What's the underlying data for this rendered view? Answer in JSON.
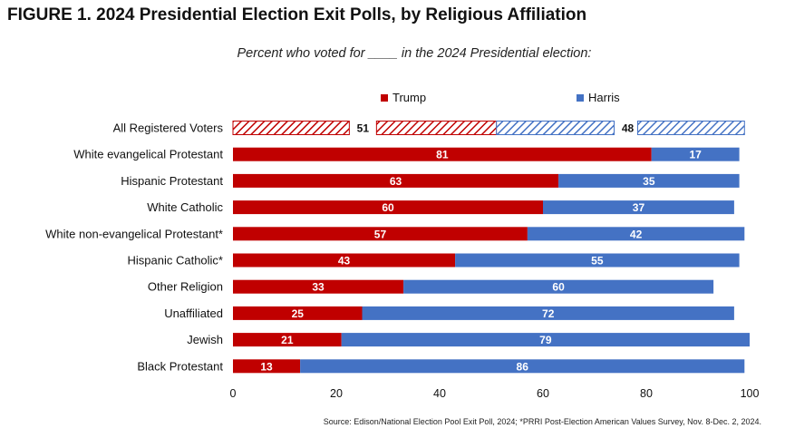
{
  "figure_title": "FIGURE 1. 2024 Presidential Election Exit Polls, by Religious Affiliation",
  "source_note": "Source: Edison/National Election Pool Exit Poll, 2024; *PRRI Post-Election American Values Survey, Nov. 8-Dec. 2, 2024.",
  "colors": {
    "trump": "#c00000",
    "harris": "#4472c4"
  },
  "chart_data": {
    "type": "bar",
    "orientation": "horizontal",
    "stacked": true,
    "title": "Percent who voted for ____ in the 2024 Presidential election:",
    "xlabel": "",
    "ylabel": "",
    "xlim": [
      0,
      100
    ],
    "xticks": [
      0,
      20,
      40,
      60,
      80,
      100
    ],
    "legend": "top",
    "grid": false,
    "categories": [
      "All Registered Voters",
      "White evangelical Protestant",
      "Hispanic Protestant",
      "White Catholic",
      "White non-evangelical Protestant*",
      "Hispanic Catholic*",
      "Other Religion",
      "Unaffiliated",
      "Jewish",
      "Black Protestant"
    ],
    "series": [
      {
        "name": "Trump",
        "values": [
          51,
          81,
          63,
          60,
          57,
          43,
          33,
          25,
          21,
          13
        ]
      },
      {
        "name": "Harris",
        "values": [
          48,
          17,
          35,
          37,
          42,
          55,
          60,
          72,
          79,
          86
        ]
      }
    ],
    "hatched_categories": [
      "All Registered Voters"
    ]
  }
}
